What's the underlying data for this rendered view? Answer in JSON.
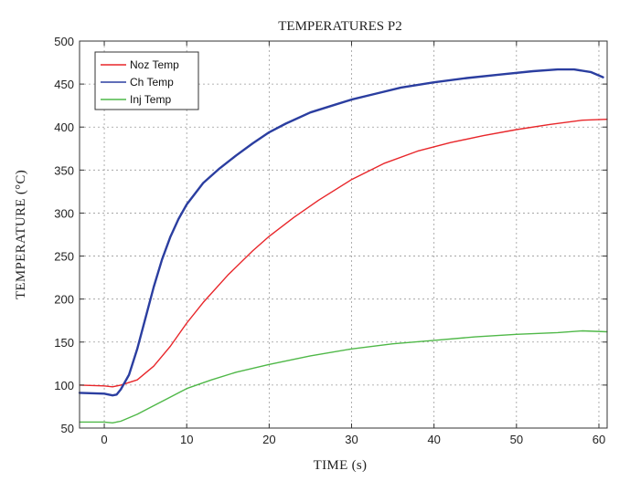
{
  "chart_data": {
    "type": "line",
    "title": "TEMPERATURES P2",
    "xlabel": "TIME (s)",
    "ylabel": "TEMPERATURE (°C)",
    "xlim": [
      -3,
      61
    ],
    "ylim": [
      50,
      500
    ],
    "xticks": [
      0,
      10,
      20,
      30,
      40,
      50,
      60
    ],
    "yticks": [
      50,
      100,
      150,
      200,
      250,
      300,
      350,
      400,
      450,
      500
    ],
    "grid": true,
    "legend_position": "top-left",
    "series": [
      {
        "name": "Noz Temp",
        "color": "#e8262a",
        "x": [
          -3,
          0,
          1,
          2,
          4,
          6,
          8,
          10,
          12,
          15,
          18,
          20,
          23,
          26,
          30,
          34,
          38,
          42,
          46,
          50,
          54,
          58,
          61
        ],
        "y": [
          100,
          99,
          98,
          100,
          106,
          122,
          145,
          172,
          196,
          228,
          256,
          273,
          295,
          315,
          339,
          358,
          372,
          382,
          390,
          397,
          403,
          408,
          409
        ]
      },
      {
        "name": "Ch Temp",
        "color": "#2b3ea0",
        "x": [
          -3,
          0,
          1,
          1.5,
          2,
          3,
          4,
          5,
          6,
          7,
          8,
          9,
          10,
          12,
          14,
          16,
          18,
          20,
          22,
          25,
          28,
          30,
          33,
          36,
          40,
          44,
          48,
          52,
          55,
          57,
          59,
          60.5
        ],
        "y": [
          91,
          90,
          88,
          89,
          95,
          112,
          142,
          178,
          214,
          246,
          272,
          293,
          310,
          335,
          352,
          367,
          381,
          394,
          404,
          417,
          426,
          432,
          439,
          446,
          452,
          457,
          461,
          465,
          467,
          467,
          464,
          458
        ]
      },
      {
        "name": "Inj Temp",
        "color": "#4fb848",
        "x": [
          -3,
          0,
          1,
          2,
          4,
          6,
          8,
          10,
          13,
          16,
          20,
          25,
          30,
          35,
          40,
          45,
          50,
          55,
          58,
          61
        ],
        "y": [
          57,
          57,
          56,
          58,
          66,
          76,
          86,
          96,
          106,
          115,
          124,
          134,
          142,
          148,
          152,
          156,
          159,
          161,
          163,
          162
        ]
      }
    ]
  }
}
